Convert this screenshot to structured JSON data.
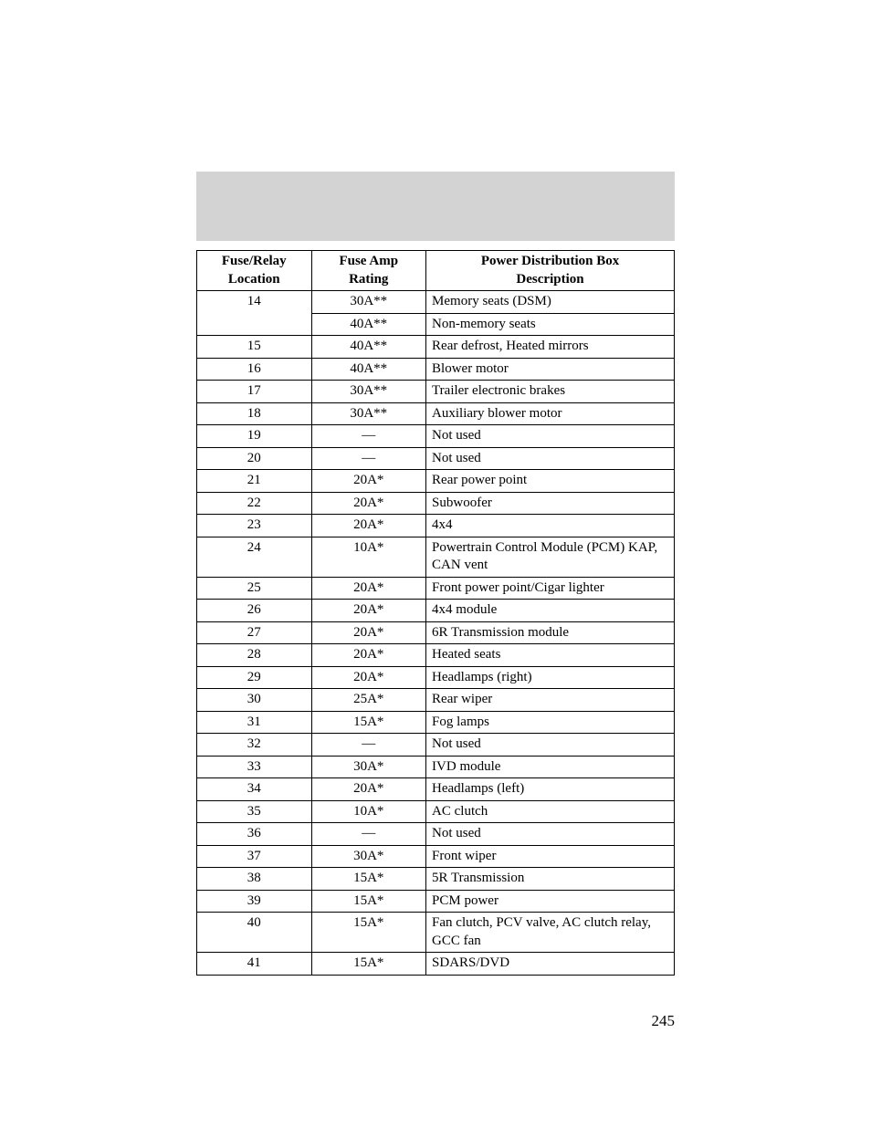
{
  "table": {
    "background_color": "#ffffff",
    "header_bar_color": "#d3d3d3",
    "border_color": "#000000",
    "font_family": "Times New Roman",
    "font_size": 15,
    "header_font_weight": "bold",
    "columns": [
      {
        "header_line1": "Fuse/Relay",
        "header_line2": "Location",
        "width_pct": 24,
        "align": "center"
      },
      {
        "header_line1": "Fuse Amp",
        "header_line2": "Rating",
        "width_pct": 24,
        "align": "center"
      },
      {
        "header_line1": "Power Distribution Box",
        "header_line2": "Description",
        "width_pct": 52,
        "align_header": "center",
        "align_body": "left"
      }
    ],
    "rows": [
      {
        "location": "14",
        "rating": "30A**",
        "desc": "Memory seats (DSM)",
        "rowspan_loc": 2
      },
      {
        "location": "",
        "rating": "40A**",
        "desc": "Non-memory seats"
      },
      {
        "location": "15",
        "rating": "40A**",
        "desc": "Rear defrost, Heated mirrors"
      },
      {
        "location": "16",
        "rating": "40A**",
        "desc": "Blower motor"
      },
      {
        "location": "17",
        "rating": "30A**",
        "desc": "Trailer electronic brakes"
      },
      {
        "location": "18",
        "rating": "30A**",
        "desc": "Auxiliary blower motor"
      },
      {
        "location": "19",
        "rating": "—",
        "desc": "Not used"
      },
      {
        "location": "20",
        "rating": "—",
        "desc": "Not used"
      },
      {
        "location": "21",
        "rating": "20A*",
        "desc": "Rear power point"
      },
      {
        "location": "22",
        "rating": "20A*",
        "desc": "Subwoofer"
      },
      {
        "location": "23",
        "rating": "20A*",
        "desc": "4x4"
      },
      {
        "location": "24",
        "rating": "10A*",
        "desc": "Powertrain Control Module (PCM) KAP, CAN vent"
      },
      {
        "location": "25",
        "rating": "20A*",
        "desc": "Front power point/Cigar lighter"
      },
      {
        "location": "26",
        "rating": "20A*",
        "desc": "4x4 module"
      },
      {
        "location": "27",
        "rating": "20A*",
        "desc": "6R Transmission module"
      },
      {
        "location": "28",
        "rating": "20A*",
        "desc": "Heated seats"
      },
      {
        "location": "29",
        "rating": "20A*",
        "desc": "Headlamps (right)"
      },
      {
        "location": "30",
        "rating": "25A*",
        "desc": "Rear wiper"
      },
      {
        "location": "31",
        "rating": "15A*",
        "desc": "Fog lamps"
      },
      {
        "location": "32",
        "rating": "—",
        "desc": "Not used"
      },
      {
        "location": "33",
        "rating": "30A*",
        "desc": "IVD module"
      },
      {
        "location": "34",
        "rating": "20A*",
        "desc": "Headlamps (left)"
      },
      {
        "location": "35",
        "rating": "10A*",
        "desc": "AC clutch"
      },
      {
        "location": "36",
        "rating": "—",
        "desc": "Not used"
      },
      {
        "location": "37",
        "rating": "30A*",
        "desc": "Front wiper"
      },
      {
        "location": "38",
        "rating": "15A*",
        "desc": "5R Transmission"
      },
      {
        "location": "39",
        "rating": "15A*",
        "desc": "PCM power"
      },
      {
        "location": "40",
        "rating": "15A*",
        "desc": "Fan clutch, PCV valve, AC clutch relay, GCC fan"
      },
      {
        "location": "41",
        "rating": "15A*",
        "desc": "SDARS/DVD"
      }
    ]
  },
  "page_number": "245"
}
